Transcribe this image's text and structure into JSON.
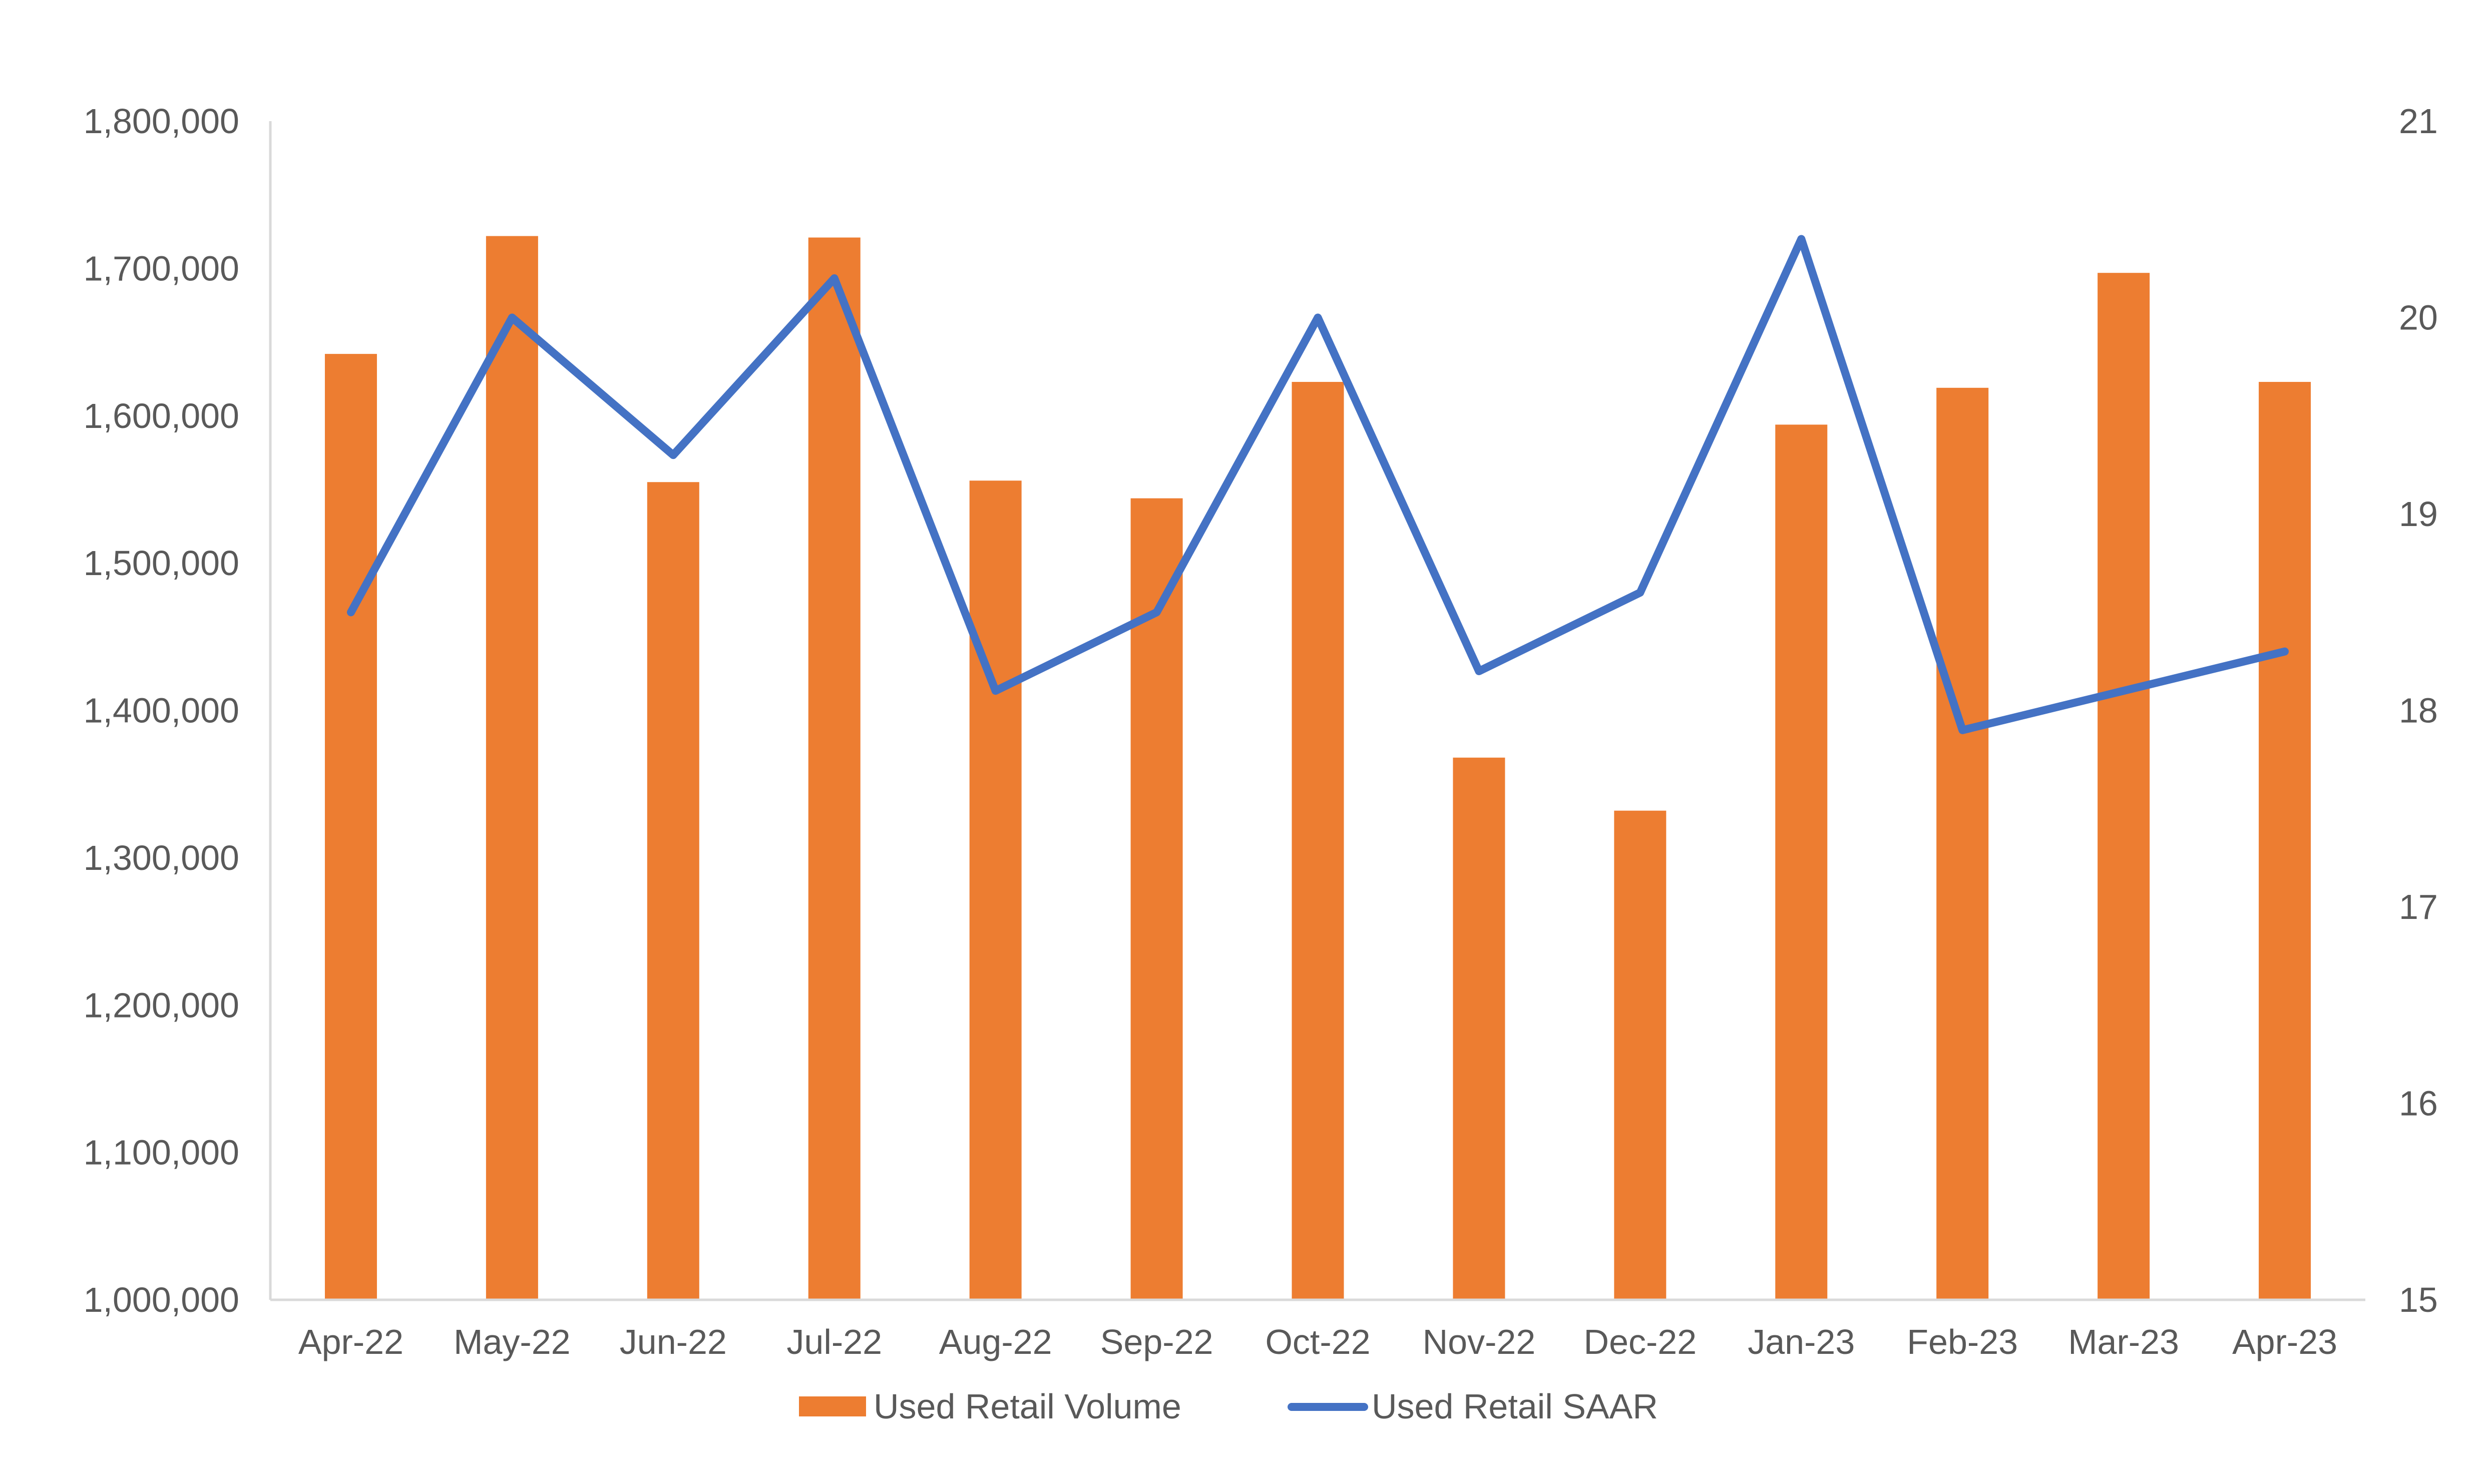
{
  "colors": {
    "bar": "#ED7D31",
    "line": "#4472C4",
    "axis": "#D9D9D9",
    "text": "#595959",
    "background": "#FFFFFF"
  },
  "chart_data": {
    "type": "bar",
    "title": "",
    "xlabel": "",
    "ylabel": "",
    "categories": [
      "Apr-22",
      "May-22",
      "Jun-22",
      "Jul-22",
      "Aug-22",
      "Sep-22",
      "Oct-22",
      "Nov-22",
      "Dec-22",
      "Jan-23",
      "Feb-23",
      "Mar-23",
      "Apr-23"
    ],
    "series": [
      {
        "name": "Used Retail Volume",
        "type": "bar",
        "axis": "left",
        "values": [
          1642000,
          1722000,
          1555000,
          1721000,
          1556000,
          1544000,
          1623000,
          1368000,
          1332000,
          1594000,
          1619000,
          1697000,
          1623000
        ]
      },
      {
        "name": "Used Retail SAAR",
        "type": "line",
        "axis": "right",
        "values": [
          18.5,
          20.0,
          19.3,
          20.2,
          18.1,
          18.5,
          20.0,
          18.2,
          18.6,
          20.4,
          17.9,
          18.1,
          18.3
        ]
      }
    ],
    "y_left": {
      "ylim": [
        1000000,
        1800000
      ],
      "ticks": [
        1000000,
        1100000,
        1200000,
        1300000,
        1400000,
        1500000,
        1600000,
        1700000,
        1800000
      ],
      "tick_labels": [
        "1,000,000",
        "1,100,000",
        "1,200,000",
        "1,300,000",
        "1,400,000",
        "1,500,000",
        "1,600,000",
        "1,700,000",
        "1,800,000"
      ]
    },
    "y_right": {
      "ylim": [
        15,
        21
      ],
      "ticks": [
        15,
        16,
        17,
        18,
        19,
        20,
        21
      ],
      "tick_labels": [
        "15",
        "16",
        "17",
        "18",
        "19",
        "20",
        "21"
      ]
    },
    "grid": false,
    "legend": {
      "position": "bottom",
      "entries": [
        "Used Retail Volume",
        "Used Retail SAAR"
      ]
    }
  }
}
